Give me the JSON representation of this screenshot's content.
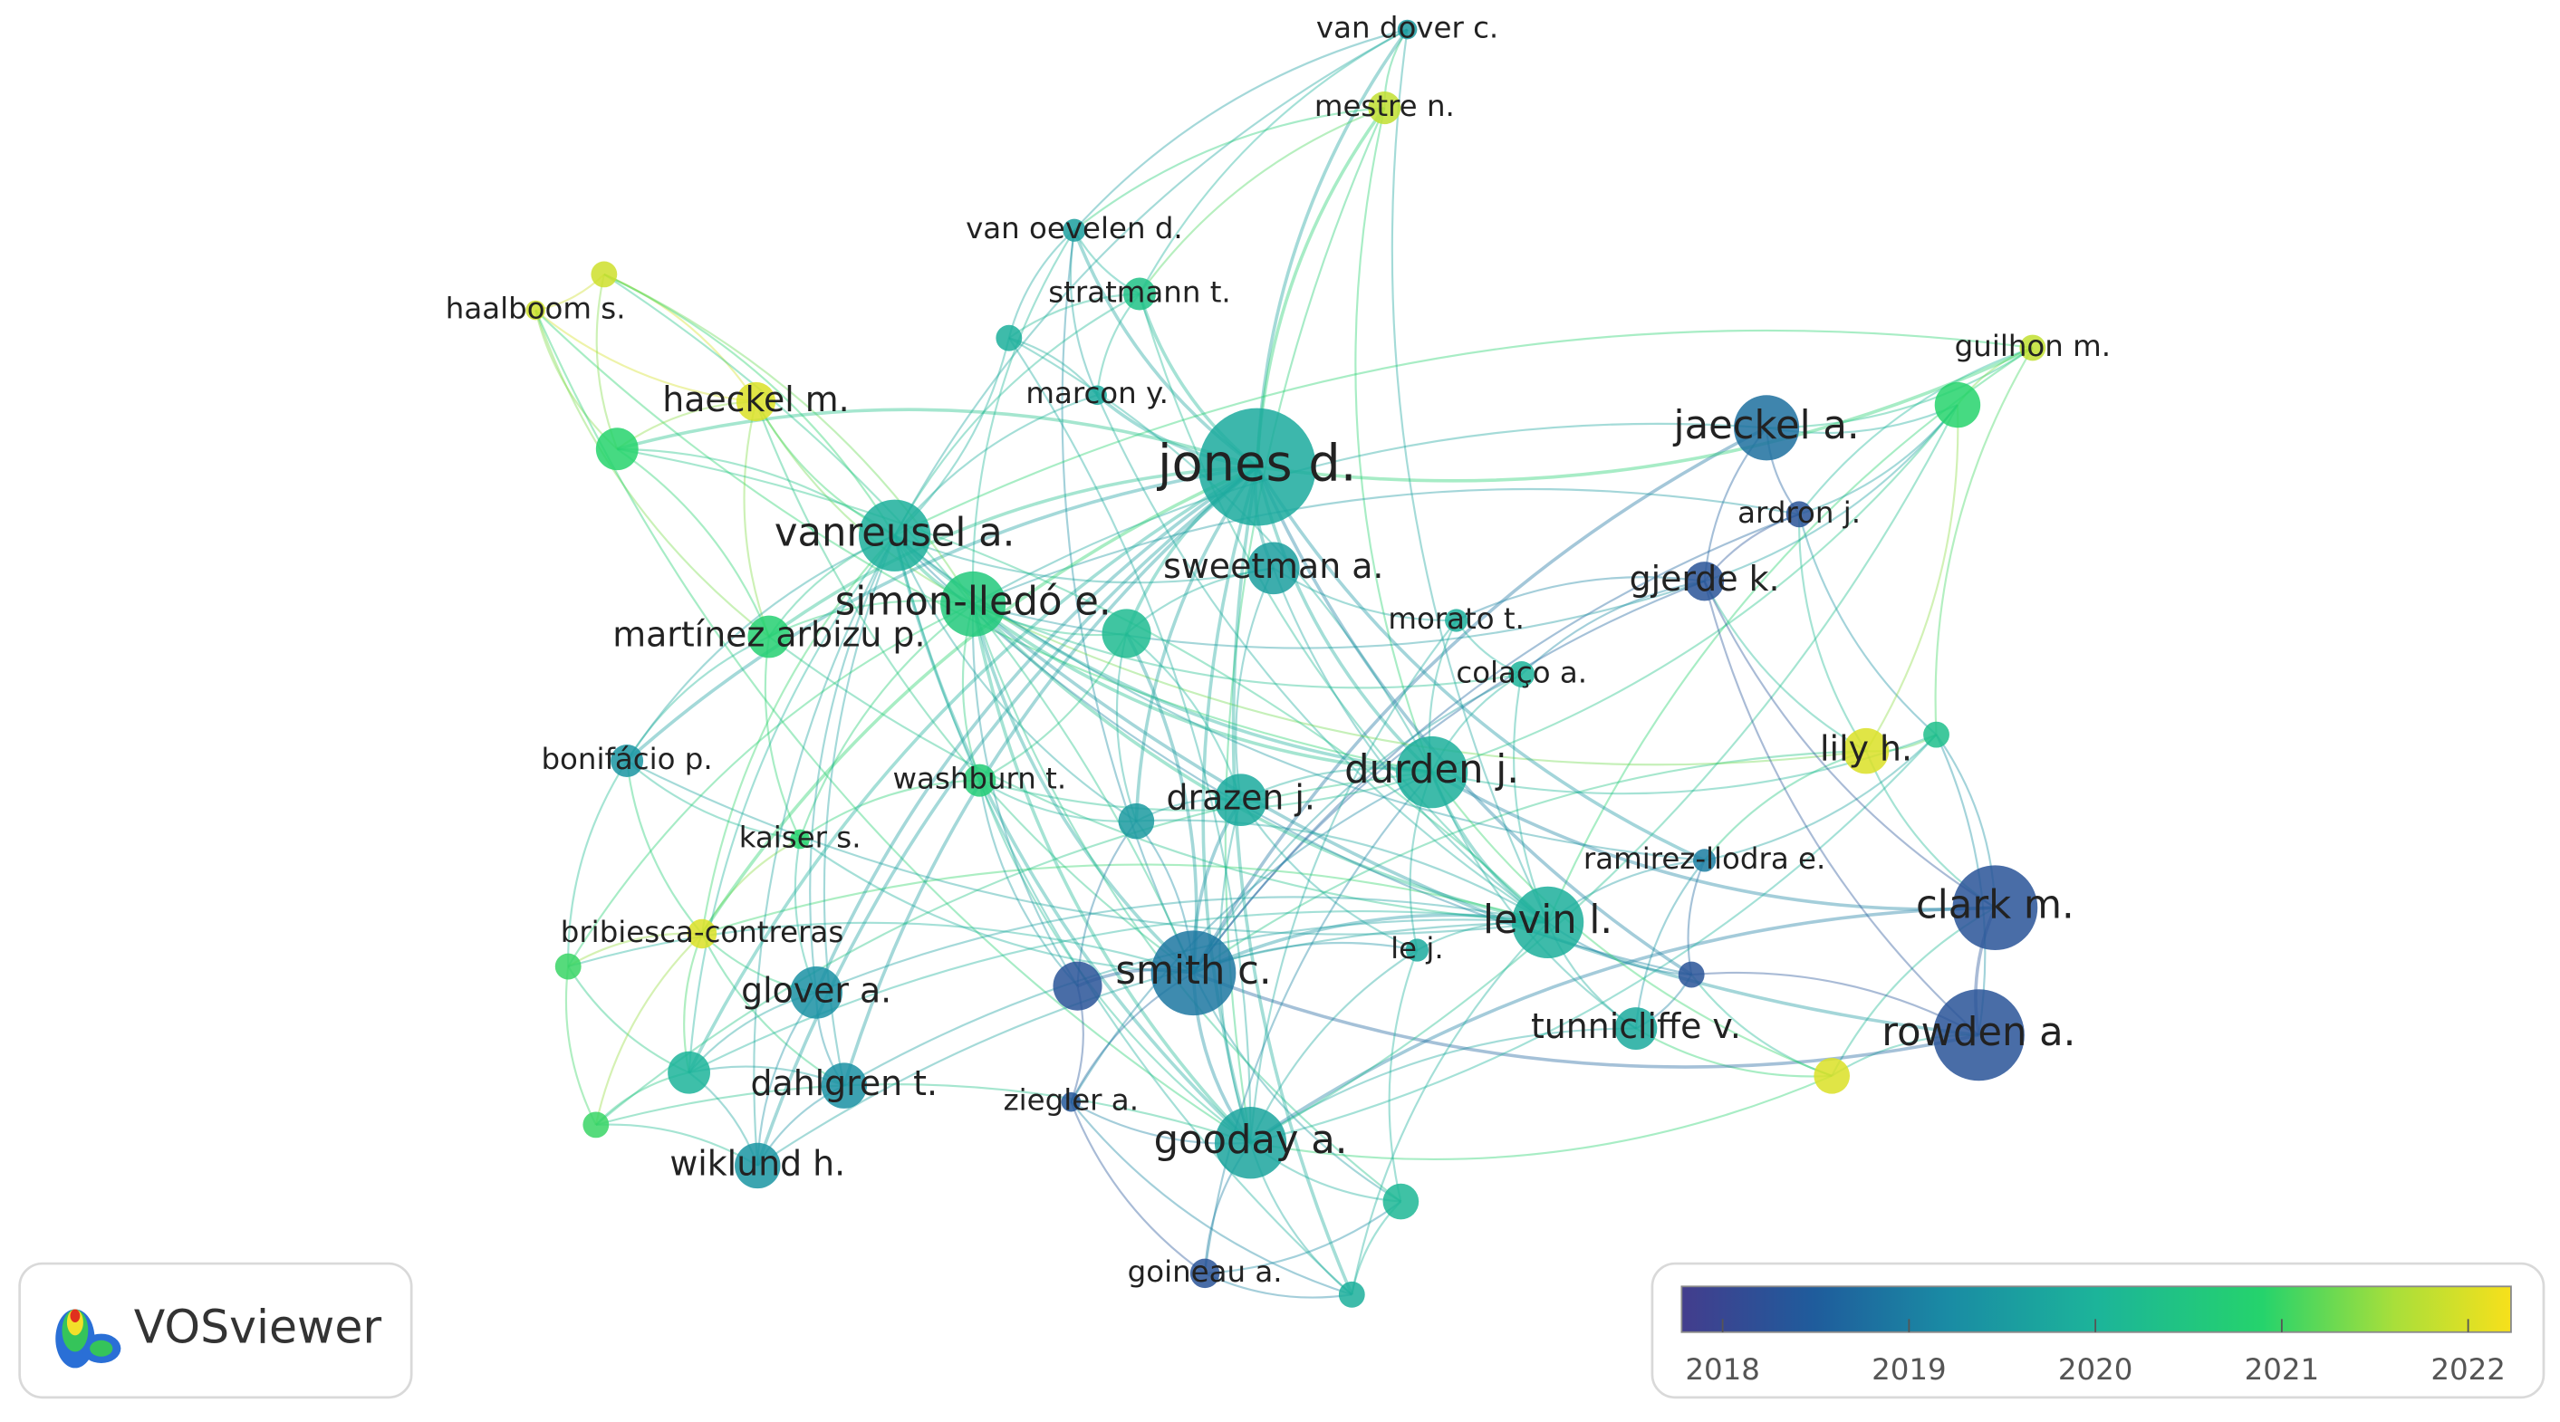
{
  "nodes": [
    {
      "label": "van dover c.",
      "year": 2019.5
    },
    {
      "label": "mestre n.",
      "year": 2021.8
    },
    {
      "label": "van oevelen d.",
      "year": 2019.6
    },
    {
      "label": "stratmann t.",
      "year": 2020.4
    },
    {
      "label": "haalboom s.",
      "year": 2021.9
    },
    {
      "label": "haeckel m.",
      "year": 2022
    },
    {
      "label": "marcon y.",
      "year": 2019.8
    },
    {
      "label": "jones d.",
      "year": 2019.8
    },
    {
      "label": "jaeckel a.",
      "year": 2018.8
    },
    {
      "label": "guilhon m.",
      "year": 2021.8
    },
    {
      "label": "vanreusel a.",
      "year": 2019.9
    },
    {
      "label": "ardron j.",
      "year": 2018.3
    },
    {
      "label": "sweetman a.",
      "year": 2019.6
    },
    {
      "label": "simon-lledó e.",
      "year": 2020.6
    },
    {
      "label": "gjerde k.",
      "year": 2018.3
    },
    {
      "label": "martínez arbizu p.",
      "year": 2020.8
    },
    {
      "label": "morato t.",
      "year": 2019.9
    },
    {
      "label": "colaço a.",
      "year": 2020
    },
    {
      "label": "bonifácio p.",
      "year": 2019.4
    },
    {
      "label": "washburn t.",
      "year": 2020.7
    },
    {
      "label": "lily h.",
      "year": 2022
    },
    {
      "label": "durden j.",
      "year": 2019.9
    },
    {
      "label": "drazen j.",
      "year": 2019.8
    },
    {
      "label": "kaiser s.",
      "year": 2020.9
    },
    {
      "label": "ramirez-llodra e.",
      "year": 2019
    },
    {
      "label": "clark m.",
      "year": 2018.3
    },
    {
      "label": "levin l.",
      "year": 2019.9
    },
    {
      "label": "bribiesca-contreras",
      "year": 2022
    },
    {
      "label": "le j.",
      "year": 2019.8
    },
    {
      "label": "smith c.",
      "year": 2018.9
    },
    {
      "label": "glover a.",
      "year": 2019.3
    },
    {
      "label": "tunnicliffe v.",
      "year": 2019.8
    },
    {
      "label": "rowden a.",
      "year": 2018.3
    },
    {
      "label": "dahlgren t.",
      "year": 2019.3
    },
    {
      "label": "ziegler a.",
      "year": 2018.4
    },
    {
      "label": "gooday a.",
      "year": 2019.7
    },
    {
      "label": "wiklund h.",
      "year": 2019.4
    },
    {
      "label": "goineau a.",
      "year": 2018.3
    },
    {
      "label": null,
      "year": 2021.9
    },
    {
      "label": null,
      "year": 2020.9
    },
    {
      "label": null,
      "year": 2019.9
    },
    {
      "label": null,
      "year": 2020.2
    },
    {
      "label": null,
      "year": 2019.5
    },
    {
      "label": null,
      "year": 2020.3
    },
    {
      "label": null,
      "year": 2018.3
    },
    {
      "label": null,
      "year": 2018.3
    },
    {
      "label": null,
      "year": 2022
    },
    {
      "label": null,
      "year": 2021
    },
    {
      "label": null,
      "year": 2020
    },
    {
      "label": null,
      "year": 2021
    },
    {
      "label": null,
      "year": 2020.1
    },
    {
      "label": null,
      "year": 2019.9
    },
    {
      "label": null,
      "year": 2020.9
    }
  ],
  "color_scale": {
    "lim": [
      2017.78,
      2022.23
    ],
    "ticks": [
      2018,
      2019,
      2020,
      2021,
      2022
    ]
  },
  "logo": "VOSviewer"
}
